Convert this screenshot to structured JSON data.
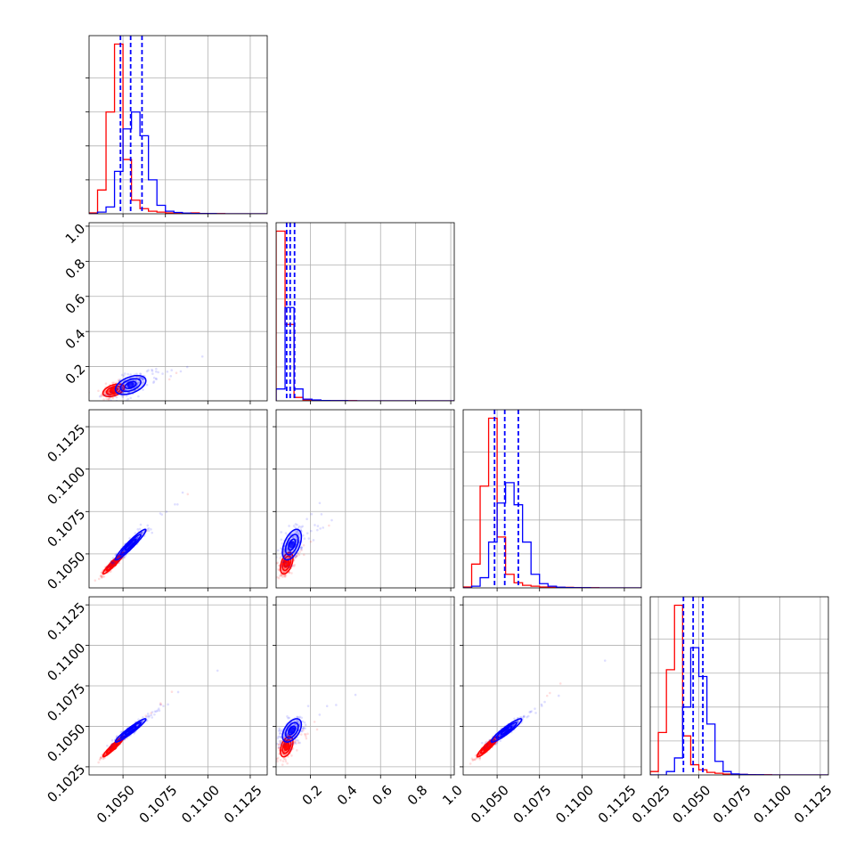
{
  "chart_data": {
    "type": "corner",
    "n_params": 4,
    "series": [
      {
        "name": "",
        "color": "#ff0000"
      },
      {
        "name": "",
        "color": "#0000ff"
      }
    ],
    "params": [
      {
        "lim": [
          0.103,
          0.1135
        ],
        "ticks": [
          0.105,
          0.1075,
          0.11,
          0.1125
        ],
        "tick_labels": [
          "0.1050",
          "0.1075",
          "0.1100",
          "0.1125"
        ]
      },
      {
        "lim": [
          0.005,
          1.02
        ],
        "ticks": [
          0.2,
          0.4,
          0.6,
          0.8,
          1.0
        ],
        "tick_labels": [
          "0.2",
          "0.4",
          "0.6",
          "0.8",
          "1.0"
        ]
      },
      {
        "lim": [
          0.103,
          0.1135
        ],
        "ticks": [
          0.105,
          0.1075,
          0.11,
          0.1125
        ],
        "tick_labels": [
          "0.1050",
          "0.1075",
          "0.1100",
          "0.1125"
        ]
      },
      {
        "lim": [
          0.102,
          0.113
        ],
        "ticks": [
          0.1025,
          0.105,
          0.1075,
          0.11,
          0.1125
        ],
        "tick_labels": [
          "0.1025",
          "0.1050",
          "0.1075",
          "0.1100",
          "0.1125"
        ]
      }
    ],
    "histograms": [
      {
        "bin_edges": [
          0.103,
          0.1035,
          0.104,
          0.1045,
          0.105,
          0.1055,
          0.106,
          0.1065,
          0.107,
          0.1075,
          0.108,
          0.1085,
          0.109,
          0.1095,
          0.11,
          0.1105,
          0.111,
          0.1115,
          0.112,
          0.1125,
          0.113,
          0.1135
        ],
        "series": [
          [
            0.005,
            0.14,
            0.6,
            1.0,
            0.32,
            0.08,
            0.03,
            0.015,
            0.01,
            0.005,
            0.005,
            0.003,
            0.005,
            0.002,
            0.001,
            0.001,
            0,
            0,
            0,
            0,
            0
          ],
          [
            0,
            0.01,
            0.04,
            0.25,
            0.5,
            0.6,
            0.46,
            0.2,
            0.05,
            0.015,
            0.008,
            0.004,
            0.002,
            0.001,
            0.001,
            0,
            0,
            0,
            0,
            0,
            0
          ]
        ],
        "quantiles": [
          0.10485,
          0.10545,
          0.10612
        ]
      },
      {
        "bin_edges": [
          0.005,
          0.056,
          0.107,
          0.158,
          0.209,
          0.26,
          0.311,
          0.362,
          0.413,
          0.464,
          0.515,
          0.566,
          0.617,
          0.668,
          0.719,
          0.77,
          0.821,
          0.872,
          0.923,
          0.974,
          1.02
        ],
        "series": [
          [
            1.0,
            0.45,
            0.02,
            0.005,
            0.003,
            0.002,
            0.001,
            0.001,
            0.001,
            0,
            0,
            0,
            0,
            0,
            0,
            0,
            0,
            0,
            0,
            0
          ],
          [
            0.07,
            0.55,
            0.07,
            0.01,
            0.005,
            0.002,
            0.001,
            0.001,
            0,
            0,
            0,
            0,
            0,
            0,
            0,
            0,
            0,
            0,
            0,
            0
          ]
        ],
        "quantiles": [
          0.065,
          0.085,
          0.11
        ]
      },
      {
        "bin_edges": [
          0.103,
          0.1035,
          0.104,
          0.1045,
          0.105,
          0.1055,
          0.106,
          0.1065,
          0.107,
          0.1075,
          0.108,
          0.1085,
          0.109,
          0.1095,
          0.11,
          0.1105,
          0.111,
          0.1115,
          0.112,
          0.1125,
          0.113,
          0.1135
        ],
        "series": [
          [
            0.005,
            0.14,
            0.6,
            1.0,
            0.3,
            0.08,
            0.03,
            0.015,
            0.01,
            0.005,
            0.004,
            0.003,
            0.003,
            0.002,
            0.001,
            0.001,
            0,
            0,
            0,
            0,
            0
          ],
          [
            0,
            0.01,
            0.06,
            0.27,
            0.5,
            0.62,
            0.49,
            0.27,
            0.08,
            0.025,
            0.01,
            0.004,
            0.002,
            0.001,
            0.001,
            0,
            0,
            0,
            0,
            0,
            0
          ]
        ],
        "quantiles": [
          0.10485,
          0.10545,
          0.10625
        ]
      },
      {
        "bin_edges": [
          0.102,
          0.1025,
          0.103,
          0.1035,
          0.104,
          0.1045,
          0.105,
          0.1055,
          0.106,
          0.1065,
          0.107,
          0.1075,
          0.108,
          0.1085,
          0.109,
          0.1095,
          0.11,
          0.1105,
          0.111,
          0.1115,
          0.112,
          0.1125,
          0.113
        ],
        "series": [
          [
            0.02,
            0.25,
            0.62,
            1.0,
            0.23,
            0.06,
            0.03,
            0.015,
            0.01,
            0.005,
            0.004,
            0.003,
            0.002,
            0.001,
            0.001,
            0,
            0,
            0,
            0,
            0,
            0,
            0
          ],
          [
            0,
            0,
            0.02,
            0.1,
            0.4,
            0.75,
            0.58,
            0.3,
            0.08,
            0.02,
            0.006,
            0.003,
            0.001,
            0.001,
            0,
            0,
            0,
            0,
            0,
            0,
            0,
            0
          ]
        ],
        "quantiles": [
          0.10405,
          0.10465,
          0.10525
        ]
      }
    ],
    "distributions": {
      "red": {
        "mean": [
          0.10445,
          0.065,
          0.10445,
          0.10375
        ],
        "sd": [
          0.00035,
          0.02,
          0.00035,
          0.00035
        ],
        "corr": [
          [
            1,
            0.45,
            0.95,
            0.95
          ],
          [
            0.45,
            1,
            0.45,
            0.45
          ],
          [
            0.95,
            0.45,
            1,
            0.93
          ],
          [
            0.95,
            0.45,
            0.93,
            1
          ]
        ]
      },
      "blue": {
        "mean": [
          0.10545,
          0.095,
          0.10555,
          0.10475
        ],
        "sd": [
          0.0005,
          0.03,
          0.0005,
          0.0004
        ],
        "corr": [
          [
            1,
            0.45,
            0.95,
            0.95
          ],
          [
            0.45,
            1,
            0.5,
            0.5
          ],
          [
            0.95,
            0.5,
            1,
            0.93
          ],
          [
            0.95,
            0.5,
            0.93,
            1
          ]
        ]
      }
    }
  }
}
